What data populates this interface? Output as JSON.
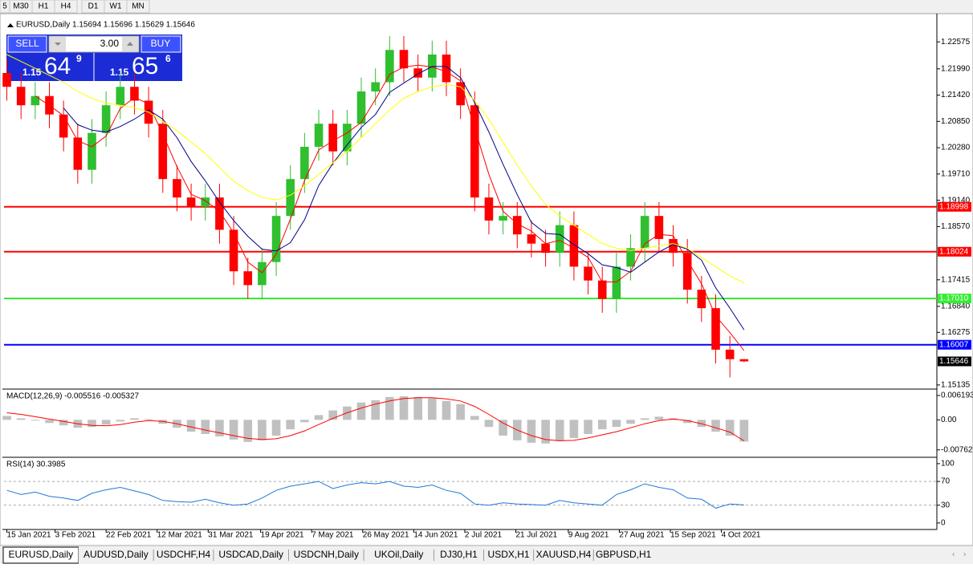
{
  "toolbar": {
    "timeframes": [
      "5",
      "M30",
      "H1",
      "H4",
      "D1",
      "W1",
      "MN"
    ]
  },
  "trade_panel": {
    "sell_label": "SELL",
    "buy_label": "BUY",
    "lot": "3.00",
    "sell_price": {
      "big": "1.15",
      "pips": "64",
      "fraction": "9"
    },
    "buy_price": {
      "big": "1.15",
      "pips": "65",
      "fraction": "6"
    }
  },
  "tabs": [
    "EURUSD,Daily",
    "AUDUSD,Daily",
    "USDCHF,H4",
    "USDCAD,Daily",
    "USDCNH,Daily",
    "UKOil,Daily",
    "DJ30,H1",
    "USDX,H1",
    "XAUUSD,H4",
    "GBPUSD,H1"
  ],
  "chart_data": [
    {
      "type": "candlestick",
      "title": "EURUSD,Daily  1.15694 1.15696 1.15629 1.15646",
      "up_color": "#2fbf2f",
      "down_color": "#ff0000",
      "xlim": [
        -0.2,
        65.6
      ],
      "xticks": [
        {
          "value": 0,
          "label": "15 Jan 2021"
        },
        {
          "value": 3.4,
          "label": "3 Feb 2021"
        },
        {
          "value": 7,
          "label": "22 Feb 2021"
        },
        {
          "value": 10.6,
          "label": "12 Mar 2021"
        },
        {
          "value": 14.2,
          "label": "31 Mar 2021"
        },
        {
          "value": 17.9,
          "label": "19 Apr 2021"
        },
        {
          "value": 21.5,
          "label": "7 May 2021"
        },
        {
          "value": 25.1,
          "label": "26 May 2021"
        },
        {
          "value": 28.7,
          "label": "14 Jun 2021"
        },
        {
          "value": 32.3,
          "label": "2 Jul 2021"
        },
        {
          "value": 35.9,
          "label": "21 Jul 2021"
        },
        {
          "value": 39.6,
          "label": "9 Aug 2021"
        },
        {
          "value": 43.2,
          "label": "27 Aug 2021"
        },
        {
          "value": 46.8,
          "label": "15 Sep 2021"
        },
        {
          "value": 50.4,
          "label": "4 Oct 2021"
        }
      ],
      "ylim": [
        1.1508,
        1.231
      ],
      "yticks": [
        1.22575,
        {
          "value": 1.2199,
          "label": "1.21990"
        },
        {
          "value": 1.2142,
          "label": "1.21420"
        },
        {
          "value": 1.2085,
          "label": "1.20850"
        },
        {
          "value": 1.2028,
          "label": "1.20280"
        },
        {
          "value": 1.1971,
          "label": "1.19710"
        },
        {
          "value": 1.1914,
          "label": "1.19140"
        },
        {
          "value": 1.1857,
          "label": "1.18570"
        },
        1.17415,
        {
          "value": 1.1684,
          "label": "1.16840"
        },
        1.16275,
        1.15135
      ],
      "open": [
        1.219,
        1.216,
        1.212,
        1.214,
        1.21,
        1.205,
        1.198,
        1.206,
        1.212,
        1.216,
        1.213,
        1.208,
        1.196,
        1.192,
        1.19,
        1.192,
        1.185,
        1.176,
        1.173,
        1.178,
        1.188,
        1.196,
        1.203,
        1.208,
        1.202,
        1.208,
        1.215,
        1.217,
        1.224,
        1.22,
        1.218,
        1.223,
        1.217,
        1.212,
        1.192,
        1.187,
        1.188,
        1.184,
        1.182,
        1.18,
        1.186,
        1.177,
        1.174,
        1.17,
        1.177,
        1.181,
        1.188,
        1.183,
        1.18,
        1.172,
        1.168,
        1.159,
        1.15694
      ],
      "high": [
        1.222,
        1.219,
        1.217,
        1.217,
        1.213,
        1.208,
        1.209,
        1.215,
        1.219,
        1.219,
        1.216,
        1.211,
        1.199,
        1.195,
        1.195,
        1.195,
        1.188,
        1.179,
        1.181,
        1.191,
        1.199,
        1.206,
        1.211,
        1.211,
        1.211,
        1.218,
        1.22,
        1.227,
        1.227,
        1.223,
        1.226,
        1.226,
        1.22,
        1.215,
        1.195,
        1.191,
        1.191,
        1.187,
        1.185,
        1.189,
        1.189,
        1.18,
        1.177,
        1.18,
        1.184,
        1.191,
        1.191,
        1.186,
        1.183,
        1.175,
        1.171,
        1.162,
        1.15696
      ],
      "low": [
        1.213,
        1.209,
        1.209,
        1.207,
        1.202,
        1.195,
        1.195,
        1.203,
        1.209,
        1.21,
        1.205,
        1.193,
        1.189,
        1.187,
        1.187,
        1.182,
        1.173,
        1.17,
        1.17,
        1.175,
        1.185,
        1.193,
        1.2,
        1.199,
        1.199,
        1.205,
        1.212,
        1.214,
        1.217,
        1.215,
        1.215,
        1.214,
        1.209,
        1.189,
        1.184,
        1.184,
        1.181,
        1.179,
        1.177,
        1.177,
        1.174,
        1.171,
        1.167,
        1.167,
        1.174,
        1.178,
        1.18,
        1.177,
        1.169,
        1.165,
        1.156,
        1.153,
        1.15629
      ],
      "close": [
        1.216,
        1.212,
        1.214,
        1.21,
        1.205,
        1.198,
        1.206,
        1.212,
        1.216,
        1.213,
        1.208,
        1.196,
        1.192,
        1.19,
        1.192,
        1.185,
        1.176,
        1.173,
        1.178,
        1.188,
        1.196,
        1.203,
        1.208,
        1.202,
        1.208,
        1.215,
        1.217,
        1.224,
        1.22,
        1.218,
        1.223,
        1.217,
        1.212,
        1.192,
        1.187,
        1.188,
        1.184,
        1.182,
        1.18,
        1.186,
        1.177,
        1.174,
        1.17,
        1.177,
        1.181,
        1.188,
        1.183,
        1.18,
        1.172,
        1.168,
        1.159,
        1.15694,
        1.15646
      ],
      "series": [
        {
          "color": "#ff0000",
          "values": [
            null,
            null,
            1.214,
            1.212,
            1.2097,
            1.2043,
            1.203,
            1.2053,
            1.2113,
            1.2137,
            1.2123,
            1.2057,
            1.1987,
            1.1927,
            1.1913,
            1.189,
            1.1843,
            1.178,
            1.1757,
            1.1797,
            1.1873,
            1.1957,
            1.2023,
            1.2043,
            1.206,
            1.2083,
            1.2133,
            1.2187,
            1.2203,
            1.2207,
            1.2203,
            1.2193,
            1.2173,
            1.207,
            1.197,
            1.189,
            1.1863,
            1.1847,
            1.182,
            1.1827,
            1.181,
            1.179,
            1.1737,
            1.1737,
            1.176,
            1.182,
            1.184,
            1.1837,
            1.1783,
            1.1733,
            1.1663,
            1.1627,
            1.1588
          ]
        },
        {
          "color": "#00008b",
          "values": [
            null,
            null,
            null,
            null,
            1.2114,
            1.2078,
            1.2066,
            1.2062,
            1.2074,
            1.209,
            1.211,
            1.209,
            1.205,
            1.1998,
            1.1956,
            1.191,
            1.187,
            1.1836,
            1.1808,
            1.1804,
            1.1822,
            1.1872,
            1.1946,
            1.1994,
            1.2034,
            1.2072,
            1.21,
            1.2148,
            1.2168,
            1.2188,
            1.2204,
            1.2204,
            1.218,
            1.2126,
            1.2062,
            1.1992,
            1.1926,
            1.1866,
            1.1842,
            1.184,
            1.1818,
            1.1798,
            1.1774,
            1.1768,
            1.1758,
            1.178,
            1.1802,
            1.1818,
            1.1808,
            1.1784,
            1.1724,
            1.168,
            1.1633
          ]
        },
        {
          "color": "#ffff00",
          "values": [
            1.223,
            1.2215,
            1.22,
            1.2185,
            1.217,
            1.215,
            1.2135,
            1.2125,
            1.212,
            1.2115,
            1.2105,
            1.2085,
            1.2065,
            1.204,
            1.2015,
            1.1985,
            1.1955,
            1.1935,
            1.192,
            1.1915,
            1.1925,
            1.1945,
            1.197,
            1.1995,
            1.202,
            1.205,
            1.208,
            1.211,
            1.2135,
            1.215,
            1.216,
            1.2165,
            1.216,
            1.213,
            1.209,
            1.204,
            1.199,
            1.1945,
            1.1905,
            1.188,
            1.186,
            1.184,
            1.182,
            1.181,
            1.1805,
            1.181,
            1.1815,
            1.182,
            1.181,
            1.179,
            1.177,
            1.175,
            1.1735
          ]
        }
      ],
      "levels": [
        {
          "value": 1.18998,
          "color": "#ff0000"
        },
        {
          "value": 1.18024,
          "color": "#ff0000"
        },
        {
          "value": 1.1701,
          "label": "1.17010",
          "color": "#33ee33"
        },
        {
          "value": 1.16007,
          "color": "#0000ff"
        }
      ],
      "last_price": 1.15646
    },
    {
      "type": "macd",
      "title": "MACD(12,26,9) -0.005516 -0.005327",
      "xlim": [
        -0.2,
        65.6
      ],
      "ylim": [
        -0.0093,
        0.0074
      ],
      "yticks": [
        0.006193,
        {
          "value": 0,
          "label": "0.00"
        },
        -0.007621
      ],
      "color": "#c0c0c0",
      "values": [
        0.001,
        0.0004,
        -0.0002,
        -0.0008,
        -0.0014,
        -0.002,
        -0.0018,
        -0.0012,
        -0.0004,
        0.0004,
        0.0002,
        -0.001,
        -0.002,
        -0.003,
        -0.0036,
        -0.0042,
        -0.005,
        -0.0056,
        -0.0052,
        -0.004,
        -0.0024,
        -0.0006,
        0.0012,
        0.0024,
        0.0034,
        0.0044,
        0.005,
        0.0058,
        0.006,
        0.0058,
        0.0055,
        0.0048,
        0.004,
        0.001,
        -0.0018,
        -0.004,
        -0.0052,
        -0.0058,
        -0.006,
        -0.0054,
        -0.0046,
        -0.0036,
        -0.0024,
        -0.0018,
        -0.001,
        0.0004,
        0.0008,
        0.0004,
        -0.0008,
        -0.0018,
        -0.003,
        -0.004,
        -0.005516
      ],
      "signal": {
        "color": "#ff0000",
        "values": [
          0.0018,
          0.0014,
          0.0008,
          0.0002,
          -0.0004,
          -0.001,
          -0.0014,
          -0.0015,
          -0.0012,
          -0.0006,
          -0.0002,
          -0.0004,
          -0.001,
          -0.0018,
          -0.0026,
          -0.0033,
          -0.004,
          -0.0047,
          -0.005,
          -0.0048,
          -0.004,
          -0.0028,
          -0.0012,
          0.0004,
          0.0018,
          0.003,
          0.004,
          0.0048,
          0.0054,
          0.0056,
          0.0056,
          0.0053,
          0.0048,
          0.0034,
          0.0014,
          -0.0008,
          -0.0026,
          -0.004,
          -0.005,
          -0.0053,
          -0.0052,
          -0.0046,
          -0.0038,
          -0.003,
          -0.002,
          -0.001,
          -0.0002,
          0.0002,
          -0.0002,
          -0.001,
          -0.002,
          -0.0031,
          -0.005327
        ]
      }
    },
    {
      "type": "rsi",
      "title": "RSI(14) 30.3985",
      "xlim": [
        -0.2,
        65.6
      ],
      "ylim": [
        -11,
        108
      ],
      "yticks": [
        100,
        70,
        30,
        0
      ],
      "dashed_levels": [
        70,
        30
      ],
      "color": "#1e78d7",
      "values": [
        55,
        48,
        52,
        45,
        42,
        38,
        50,
        56,
        60,
        54,
        48,
        38,
        36,
        35,
        40,
        34,
        30,
        32,
        42,
        55,
        62,
        66,
        70,
        58,
        64,
        68,
        66,
        70,
        62,
        60,
        64,
        55,
        50,
        32,
        30,
        34,
        32,
        31,
        30,
        38,
        34,
        32,
        30,
        48,
        56,
        66,
        60,
        56,
        42,
        40,
        25,
        32,
        30.3985
      ]
    }
  ]
}
